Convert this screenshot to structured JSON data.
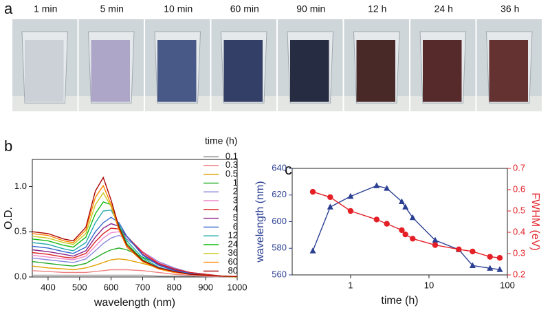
{
  "panel_labels": [
    "a",
    "b",
    "c"
  ],
  "photos": {
    "labels": [
      "1 min",
      "5 min",
      "10 min",
      "60 min",
      "90 min",
      "12 h",
      "24 h",
      "36 h"
    ]
  },
  "chart_data": [
    {
      "type": "line",
      "xlabel": "wavelength (nm)",
      "ylabel": "O.D.",
      "legend_title": "time (h)",
      "x": [
        350,
        400,
        450,
        480,
        520,
        550,
        575,
        600,
        625,
        650,
        700,
        750,
        800,
        850,
        900,
        950,
        1000
      ],
      "xlim": [
        350,
        1000
      ],
      "xticks": [
        400,
        500,
        600,
        700,
        800,
        900,
        1000
      ],
      "ylim": [
        0,
        1.3
      ],
      "yticks": [
        {
          "value": 0,
          "label": "0.0"
        },
        0.5,
        {
          "value": 1,
          "label": "1.0"
        }
      ],
      "series": [
        {
          "name": "0.1",
          "color": "#9a9a9a",
          "values": [
            0.02,
            0.02,
            0.02,
            0.02,
            0.02,
            0.02,
            0.02,
            0.02,
            0.02,
            0.02,
            0.02,
            0.01,
            0.01,
            0.01,
            0.005,
            0,
            0
          ]
        },
        {
          "name": "0.3",
          "color": "#f08080",
          "values": [
            0.07,
            0.06,
            0.05,
            0.05,
            0.05,
            0.06,
            0.07,
            0.08,
            0.08,
            0.08,
            0.07,
            0.05,
            0.03,
            0.02,
            0.01,
            0.005,
            0
          ]
        },
        {
          "name": "0.5",
          "color": "#e0a000",
          "values": [
            0.12,
            0.1,
            0.09,
            0.08,
            0.1,
            0.13,
            0.16,
            0.19,
            0.2,
            0.19,
            0.15,
            0.1,
            0.06,
            0.03,
            0.02,
            0.01,
            0
          ]
        },
        {
          "name": "1",
          "color": "#22aa22",
          "values": [
            0.17,
            0.15,
            0.13,
            0.12,
            0.15,
            0.21,
            0.26,
            0.3,
            0.32,
            0.3,
            0.22,
            0.14,
            0.08,
            0.04,
            0.02,
            0.01,
            0
          ]
        },
        {
          "name": "2",
          "color": "#8888dd",
          "values": [
            0.21,
            0.19,
            0.17,
            0.16,
            0.2,
            0.29,
            0.37,
            0.43,
            0.46,
            0.42,
            0.28,
            0.17,
            0.1,
            0.05,
            0.03,
            0.01,
            0
          ]
        },
        {
          "name": "3",
          "color": "#ee88cc",
          "values": [
            0.24,
            0.22,
            0.2,
            0.19,
            0.23,
            0.34,
            0.43,
            0.49,
            0.5,
            0.44,
            0.28,
            0.16,
            0.09,
            0.05,
            0.03,
            0.01,
            0
          ]
        },
        {
          "name": "4",
          "color": "#dd2222",
          "values": [
            0.27,
            0.25,
            0.22,
            0.21,
            0.26,
            0.39,
            0.48,
            0.54,
            0.53,
            0.45,
            0.27,
            0.15,
            0.09,
            0.05,
            0.03,
            0.01,
            0
          ]
        },
        {
          "name": "5",
          "color": "#882288",
          "values": [
            0.3,
            0.28,
            0.25,
            0.23,
            0.29,
            0.44,
            0.54,
            0.59,
            0.56,
            0.45,
            0.25,
            0.14,
            0.08,
            0.04,
            0.02,
            0.01,
            0
          ]
        },
        {
          "name": "6",
          "color": "#3366cc",
          "values": [
            0.34,
            0.32,
            0.28,
            0.26,
            0.33,
            0.5,
            0.6,
            0.66,
            0.6,
            0.45,
            0.24,
            0.13,
            0.07,
            0.04,
            0.02,
            0.01,
            0
          ]
        },
        {
          "name": "12",
          "color": "#22aaaa",
          "values": [
            0.38,
            0.36,
            0.31,
            0.29,
            0.38,
            0.6,
            0.73,
            0.74,
            0.58,
            0.4,
            0.21,
            0.11,
            0.06,
            0.03,
            0.02,
            0.01,
            0
          ]
        },
        {
          "name": "24",
          "color": "#11bb11",
          "values": [
            0.42,
            0.4,
            0.35,
            0.33,
            0.44,
            0.7,
            0.83,
            0.8,
            0.56,
            0.37,
            0.19,
            0.1,
            0.06,
            0.03,
            0.02,
            0.01,
            0
          ]
        },
        {
          "name": "36",
          "color": "#c8c820",
          "values": [
            0.45,
            0.43,
            0.38,
            0.36,
            0.48,
            0.8,
            0.93,
            0.78,
            0.52,
            0.33,
            0.17,
            0.09,
            0.05,
            0.03,
            0.02,
            0.01,
            0
          ]
        },
        {
          "name": "60",
          "color": "#ff8800",
          "values": [
            0.48,
            0.46,
            0.4,
            0.38,
            0.52,
            0.88,
            1.01,
            0.8,
            0.52,
            0.33,
            0.17,
            0.09,
            0.05,
            0.03,
            0.02,
            0.01,
            0.005
          ]
        },
        {
          "name": "80",
          "color": "#aa0000",
          "values": [
            0.5,
            0.48,
            0.42,
            0.4,
            0.55,
            0.95,
            1.1,
            0.85,
            0.55,
            0.35,
            0.18,
            0.1,
            0.06,
            0.03,
            0.02,
            0.01,
            0.005
          ]
        }
      ]
    },
    {
      "type": "line",
      "xlabel": "time (h)",
      "ylabel": "wavelength (nm)",
      "y2label": "FWHM (eV)",
      "xlog": true,
      "ylabel_color": "#2b3f93",
      "y2label_color": "#e41f26",
      "x": [
        0.33,
        0.55,
        1,
        2.15,
        2.9,
        4.5,
        5,
        6.2,
        12,
        24,
        36,
        60,
        80
      ],
      "xlim": [
        0.18,
        100
      ],
      "xticks": [
        1,
        10,
        100
      ],
      "ylim": [
        560,
        640
      ],
      "yticks": [
        560,
        580,
        600,
        620,
        640
      ],
      "y2lim": [
        0.2,
        0.7
      ],
      "y2ticks": [
        0.2,
        0.3,
        0.4,
        0.5,
        0.6,
        0.7
      ],
      "series": [
        {
          "color": "#2b3f93",
          "marker": "triangle",
          "values": [
            578,
            611,
            619,
            627,
            625,
            615,
            611,
            603,
            586,
            579,
            567,
            565,
            564
          ]
        },
        {
          "color": "#e41f26",
          "marker": "circle",
          "axis": "y2",
          "values": [
            0.59,
            0.565,
            0.5,
            0.46,
            0.44,
            0.41,
            0.39,
            0.37,
            0.34,
            0.32,
            0.31,
            0.285,
            0.28
          ]
        }
      ]
    }
  ]
}
